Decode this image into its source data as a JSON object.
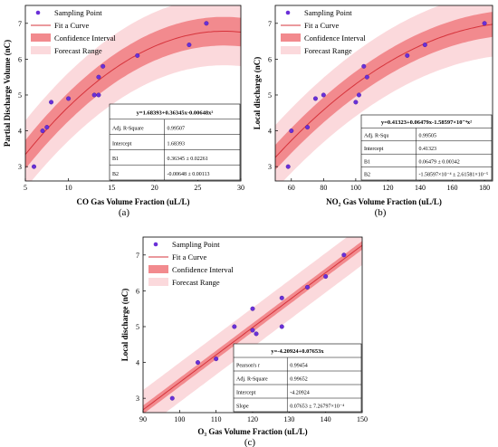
{
  "chart_data": [
    {
      "type": "scatter",
      "panel_label": "(a)",
      "xlabel": "CO Gas Volume Fraction (uL/L)",
      "ylabel": "Partial Discharge Volume (nC)",
      "xlim": [
        5,
        30
      ],
      "ylim": [
        2.6,
        7.5
      ],
      "xticks": [
        5,
        10,
        15,
        20,
        25,
        30
      ],
      "yticks": [
        3,
        4,
        5,
        6,
        7
      ],
      "legend": [
        "Sampling Point",
        "Fit a Curve",
        "Confidence Interval",
        "Forecast Range"
      ],
      "legend_position": "top-left",
      "points": [
        [
          6,
          3.0
        ],
        [
          7,
          4.0
        ],
        [
          7.5,
          4.1
        ],
        [
          8,
          4.8
        ],
        [
          10,
          4.9
        ],
        [
          13,
          5.0
        ],
        [
          13.5,
          5.0
        ],
        [
          13.5,
          5.5
        ],
        [
          14,
          5.8
        ],
        [
          18,
          6.1
        ],
        [
          24,
          6.4
        ],
        [
          26,
          7.0
        ]
      ],
      "fit": {
        "type": "quadratic",
        "coef": [
          1.68393,
          0.36345,
          -0.00648
        ]
      },
      "ci_half": 0.4,
      "pi_half": 0.95,
      "table": {
        "equation": "y=1.68393+0.36345x-0.00648x²",
        "rows": [
          [
            "Adj. R-Square",
            "0.99507"
          ],
          [
            "Intercept",
            "1.68393"
          ],
          [
            "B1",
            "0.36345 ± 0.02261"
          ],
          [
            "B2",
            "-0.00648 ± 0.00113"
          ]
        ]
      }
    },
    {
      "type": "scatter",
      "panel_label": "(b)",
      "xlabel": "NO₂ Gas Volume Fraction (uL/L)",
      "ylabel": "Local discharge (nC)",
      "xlim": [
        50,
        185
      ],
      "ylim": [
        2.6,
        7.5
      ],
      "xticks": [
        60,
        80,
        100,
        120,
        140,
        160,
        180
      ],
      "yticks": [
        3,
        4,
        5,
        6,
        7
      ],
      "legend": [
        "Sampling Point",
        "Fit a Curve",
        "Confidence Interval",
        "Forecast Range"
      ],
      "legend_position": "top-left",
      "points": [
        [
          58,
          3.0
        ],
        [
          60,
          4.0
        ],
        [
          70,
          4.1
        ],
        [
          75,
          4.9
        ],
        [
          80,
          5.0
        ],
        [
          100,
          4.8
        ],
        [
          102,
          5.0
        ],
        [
          105,
          5.8
        ],
        [
          107,
          5.5
        ],
        [
          132,
          6.1
        ],
        [
          143,
          6.4
        ],
        [
          180,
          7.0
        ]
      ],
      "fit": {
        "type": "quadratic",
        "coef": [
          0.41323,
          0.06479,
          -0.000158597
        ]
      },
      "ci_half": 0.35,
      "pi_half": 0.9,
      "table": {
        "equation": "y=0.41323+0.06479x-1.58597×10⁻⁴x²",
        "rows": [
          [
            "Adj. R-Squ",
            "0.99505"
          ],
          [
            "Intercept",
            "0.41323"
          ],
          [
            "B1",
            "0.06479 ± 0.00342"
          ],
          [
            "B2",
            "-1.58597×10⁻⁴ ± 2.61581×10⁻⁵"
          ]
        ]
      }
    },
    {
      "type": "scatter",
      "panel_label": "(c)",
      "xlabel": "O₃ Gas Volume Fraction (uL/L)",
      "ylabel": "Local discharge (nC)",
      "xlim": [
        90,
        150
      ],
      "ylim": [
        2.6,
        7.5
      ],
      "xticks": [
        90,
        100,
        110,
        120,
        130,
        140,
        150
      ],
      "yticks": [
        3,
        4,
        5,
        6,
        7
      ],
      "legend": [
        "Sampling Point",
        "Fit a Curve",
        "Confidence Interval",
        "Forecast Range"
      ],
      "legend_position": "top-left",
      "points": [
        [
          98,
          3.0
        ],
        [
          105,
          4.0
        ],
        [
          110,
          4.1
        ],
        [
          115,
          5.0
        ],
        [
          120,
          4.9
        ],
        [
          120,
          5.5
        ],
        [
          121,
          4.8
        ],
        [
          128,
          5.0
        ],
        [
          128,
          5.8
        ],
        [
          135,
          6.1
        ],
        [
          140,
          6.4
        ],
        [
          145,
          7.0
        ]
      ],
      "fit": {
        "type": "linear",
        "coef": [
          -4.20924,
          0.07653
        ]
      },
      "ci_half": 0.12,
      "pi_half": 0.55,
      "table": {
        "equation": "y=-4.20924+0.07653x",
        "rows": [
          [
            "Pearson's r",
            "0.99454"
          ],
          [
            "Adj. R-Square",
            "0.99652"
          ],
          [
            "Intercept",
            "-4.20924"
          ],
          [
            "Slope",
            "0.07653 ± 7.26797×10⁻⁴"
          ]
        ]
      }
    }
  ]
}
